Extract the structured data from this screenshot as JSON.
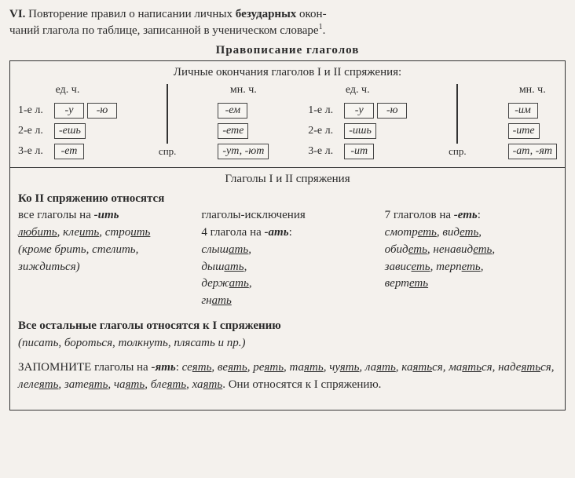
{
  "intro": {
    "roman": "VI.",
    "line1a": "Повторение правил о написании личных ",
    "boldword": "безударных",
    "line1b": " окон-",
    "line2": "чаний глагола по таблице, записанной в ученическом словаре",
    "footnote": "1",
    "dot": "."
  },
  "title": "Правописание глаголов",
  "section1": {
    "heading": "Личные окончания глаголов I и II спряжения:",
    "num_sg": "ед. ч.",
    "num_pl": "мн. ч.",
    "persons": [
      "1-е л.",
      "2-е л.",
      "3-е л."
    ],
    "conj1_sg": [
      [
        "-у",
        "-ю"
      ],
      [
        "-ешь"
      ],
      [
        "-ет"
      ]
    ],
    "conj1_pl": [
      [
        "-ем"
      ],
      [
        "-ете"
      ],
      [
        "-ут, -ют"
      ]
    ],
    "conj2_sg": [
      [
        "-у",
        "-ю"
      ],
      [
        "-ишь"
      ],
      [
        "-ит"
      ]
    ],
    "conj2_pl": [
      [
        "-им"
      ],
      [
        "-ите"
      ],
      [
        "-ат, -ят"
      ]
    ],
    "spr_label": "спр."
  },
  "section2": {
    "heading": "Глаголы I и II спряжения",
    "sub1": "Ко II спряжению относятся",
    "col1_l1": "все глаголы на ",
    "col1_bold": "-ить",
    "col1_ex": "любить, клеить, строить",
    "col1_paren": "(кроме брить, стелить, зиждиться)",
    "col2_l1": "глаголы-исключения",
    "col2_l2a": "4 глагола на ",
    "col2_l2b": "-ать",
    "col2_l2c": ":",
    "col2_words": "слышать, дышать, держать, гнать",
    "col3_l1a": "7 глаголов на ",
    "col3_l1b": "-еть",
    "col3_l1c": ":",
    "col3_words": "смотреть, видеть, обидеть, ненавидеть, зависеть, терпеть, вертеть",
    "sub2": "Все остальные глаголы относятся к I спряжению",
    "sub2_ex": "(писать, бороться, толкнуть, плясать и пр.)",
    "remember_label": "ЗАПОМНИТЕ",
    "remember_text": " глаголы на ",
    "remember_bold": "-ять",
    "remember_colon": ": ",
    "remember_words": "сеять, веять, реять, таять, чуять, лаять, каяться, маяться, надеяться, лелеять, затеять, чаять, блеять, хаять",
    "remember_tail": ". Они относятся к I спряжению."
  }
}
